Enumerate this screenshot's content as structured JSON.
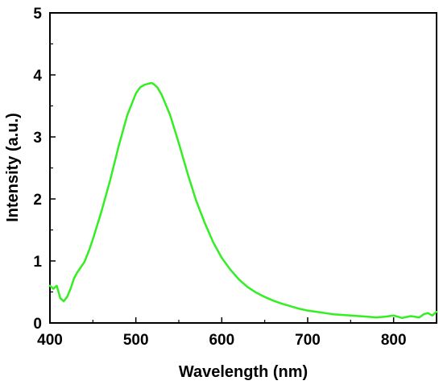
{
  "chart_data": {
    "type": "line",
    "title": "",
    "xlabel": "Wavelength (nm)",
    "ylabel": "Intensity (a.u.)",
    "xlim": [
      400,
      850
    ],
    "ylim": [
      0,
      5
    ],
    "x_ticks": [
      400,
      500,
      600,
      700,
      800
    ],
    "x_tick_labels": [
      "400",
      "500",
      "600",
      "700",
      "800"
    ],
    "y_ticks": [
      0,
      1,
      2,
      3,
      4,
      5
    ],
    "y_tick_labels": [
      "0",
      "1",
      "2",
      "3",
      "4",
      "5"
    ],
    "grid": false,
    "legend": "none",
    "series": [
      {
        "color": "#33ee22",
        "x": [
          400,
          404,
          408,
          412,
          416,
          420,
          424,
          428,
          432,
          436,
          440,
          445,
          450,
          460,
          470,
          480,
          490,
          500,
          505,
          510,
          515,
          518,
          520,
          525,
          530,
          540,
          550,
          560,
          570,
          580,
          590,
          600,
          610,
          620,
          630,
          640,
          650,
          660,
          670,
          680,
          690,
          700,
          710,
          720,
          730,
          740,
          750,
          760,
          770,
          780,
          790,
          800,
          810,
          820,
          830,
          835,
          840,
          845,
          850
        ],
        "y": [
          0.6,
          0.55,
          0.6,
          0.4,
          0.35,
          0.42,
          0.55,
          0.72,
          0.82,
          0.9,
          0.98,
          1.15,
          1.35,
          1.8,
          2.3,
          2.85,
          3.35,
          3.7,
          3.8,
          3.84,
          3.86,
          3.87,
          3.86,
          3.8,
          3.68,
          3.35,
          2.9,
          2.42,
          1.98,
          1.62,
          1.3,
          1.05,
          0.86,
          0.7,
          0.58,
          0.49,
          0.42,
          0.36,
          0.31,
          0.27,
          0.23,
          0.2,
          0.18,
          0.16,
          0.14,
          0.13,
          0.12,
          0.11,
          0.1,
          0.09,
          0.1,
          0.12,
          0.08,
          0.11,
          0.09,
          0.14,
          0.16,
          0.12,
          0.18
        ]
      }
    ]
  }
}
